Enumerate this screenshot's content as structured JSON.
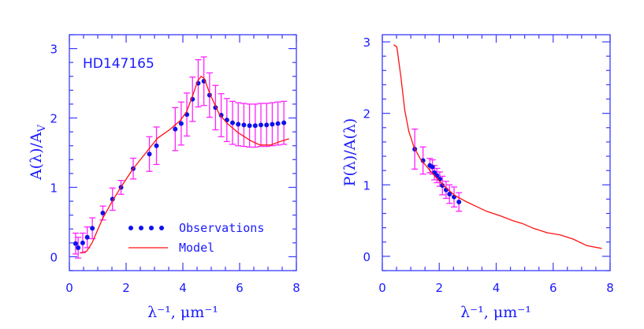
{
  "colors": {
    "axis": "#3a3aff",
    "points": "#1010ee",
    "errorbars": "#ff22ff",
    "model": "#ff1010"
  },
  "chart_data": [
    {
      "type": "scatter",
      "annotation": "HD147165",
      "xlabel": "λ⁻¹, μm⁻¹",
      "ylabel": "A(λ)/A_V",
      "ylabel_main": "A(λ)/A",
      "ylabel_sub": "V",
      "xlim": [
        0,
        8
      ],
      "ylim": [
        -0.2,
        3.2
      ],
      "xticks": [
        0,
        2,
        4,
        6,
        8
      ],
      "yticks": [
        0,
        1,
        2,
        3
      ],
      "grid": false,
      "legend": {
        "position": "bottom-center",
        "entries": [
          "Observations",
          "Model"
        ]
      },
      "series": [
        {
          "name": "Observations",
          "kind": "points_with_errors",
          "x": [
            0.22,
            0.31,
            0.47,
            0.63,
            0.81,
            1.18,
            1.52,
            1.82,
            2.25,
            2.82,
            3.07,
            3.73,
            3.94,
            4.14,
            4.34,
            4.54,
            4.74,
            4.94,
            5.15,
            5.35,
            5.55,
            5.75,
            5.95,
            6.15,
            6.35,
            6.55,
            6.75,
            6.95,
            7.15,
            7.35,
            7.56
          ],
          "y": [
            0.19,
            0.13,
            0.2,
            0.28,
            0.41,
            0.63,
            0.83,
            1.0,
            1.27,
            1.48,
            1.6,
            1.84,
            1.92,
            2.05,
            2.27,
            2.5,
            2.53,
            2.33,
            2.15,
            2.04,
            1.97,
            1.93,
            1.91,
            1.9,
            1.89,
            1.89,
            1.9,
            1.9,
            1.91,
            1.92,
            1.93
          ],
          "yerr": [
            0.15,
            0.15,
            0.14,
            0.15,
            0.15,
            0.1,
            0.16,
            0.1,
            0.15,
            0.25,
            0.27,
            0.31,
            0.31,
            0.31,
            0.32,
            0.34,
            0.35,
            0.32,
            0.32,
            0.31,
            0.31,
            0.31,
            0.31,
            0.31,
            0.31,
            0.31,
            0.31,
            0.31,
            0.31,
            0.31,
            0.31
          ]
        },
        {
          "name": "Model",
          "kind": "line",
          "x": [
            0.4,
            0.61,
            0.8,
            1.17,
            1.54,
            1.86,
            2.23,
            2.7,
            3.11,
            3.53,
            3.9,
            4.13,
            4.36,
            4.52,
            4.64,
            4.75,
            4.96,
            5.29,
            5.57,
            5.94,
            6.4,
            6.72,
            7.09,
            7.42,
            7.74
          ],
          "y": [
            0.05,
            0.08,
            0.2,
            0.55,
            0.82,
            1.03,
            1.26,
            1.5,
            1.71,
            1.83,
            1.96,
            2.09,
            2.34,
            2.53,
            2.6,
            2.57,
            2.34,
            2.05,
            1.92,
            1.79,
            1.67,
            1.61,
            1.61,
            1.66,
            1.7
          ]
        }
      ]
    },
    {
      "type": "scatter",
      "xlabel": "λ⁻¹, μm⁻¹",
      "ylabel": "P(λ)/A(λ)",
      "xlim": [
        0,
        8
      ],
      "ylim": [
        -0.2,
        3.1
      ],
      "xticks": [
        0,
        2,
        4,
        6,
        8
      ],
      "yticks": [
        0,
        1,
        2,
        3
      ],
      "grid": false,
      "series": [
        {
          "name": "Observations",
          "kind": "points_with_errors",
          "x": [
            1.14,
            1.43,
            1.67,
            1.76,
            1.83,
            1.92,
            2.02,
            2.11,
            2.24,
            2.36,
            2.52,
            2.69
          ],
          "y": [
            1.5,
            1.34,
            1.27,
            1.25,
            1.17,
            1.13,
            1.08,
            0.99,
            0.93,
            0.87,
            0.83,
            0.76
          ],
          "yerr": [
            0.28,
            0.19,
            0.1,
            0.1,
            0.1,
            0.1,
            0.1,
            0.13,
            0.12,
            0.13,
            0.14,
            0.13
          ]
        },
        {
          "name": "Model",
          "kind": "line",
          "x": [
            0.4,
            0.51,
            0.65,
            0.79,
            0.93,
            1.11,
            1.34,
            1.57,
            1.85,
            2.18,
            2.55,
            2.92,
            3.29,
            3.66,
            4.12,
            4.58,
            4.91,
            5.32,
            5.79,
            6.25,
            6.71,
            7.18,
            7.71
          ],
          "y": [
            2.96,
            2.93,
            2.52,
            2.04,
            1.75,
            1.53,
            1.36,
            1.25,
            1.12,
            0.98,
            0.85,
            0.77,
            0.7,
            0.63,
            0.57,
            0.5,
            0.46,
            0.39,
            0.33,
            0.3,
            0.24,
            0.15,
            0.11
          ]
        }
      ]
    }
  ]
}
